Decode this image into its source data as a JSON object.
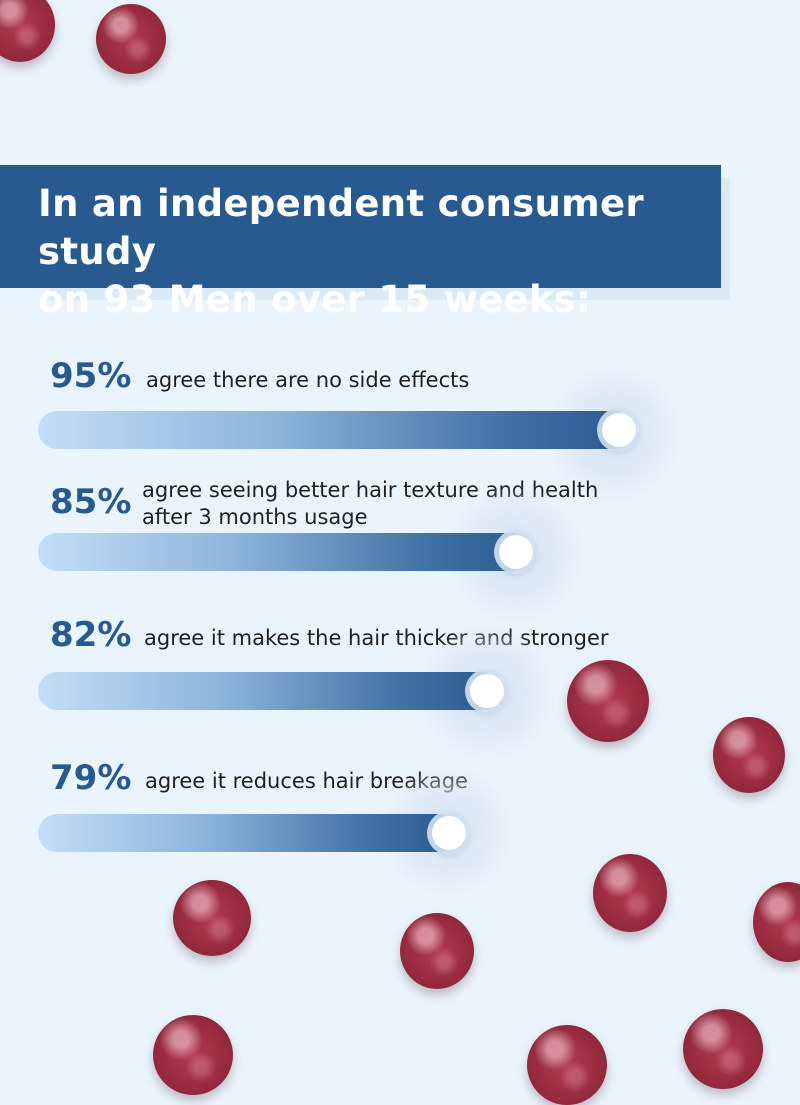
{
  "banner": {
    "line1": "In an independent consumer study",
    "line2": "on 93 Men over 15 weeks:"
  },
  "stats": [
    {
      "percent": "95%",
      "text": "agree there are no side effects",
      "value": 0.95
    },
    {
      "percent": "85%",
      "text_line1": "agree seeing better hair texture and health",
      "text_line2": "after 3 months usage",
      "value": 0.85
    },
    {
      "percent": "82%",
      "text": "agree it makes the hair thicker and stronger",
      "value": 0.82
    },
    {
      "percent": "79%",
      "text": "agree it reduces hair breakage",
      "value": 0.79
    }
  ],
  "colors": {
    "background": "#eaf4fd",
    "banner": "#285a8f",
    "percent_text": "#285a8f",
    "bar_start": "#c4def6",
    "bar_end": "#2a5a90",
    "gummy": "#9a2c40"
  }
}
